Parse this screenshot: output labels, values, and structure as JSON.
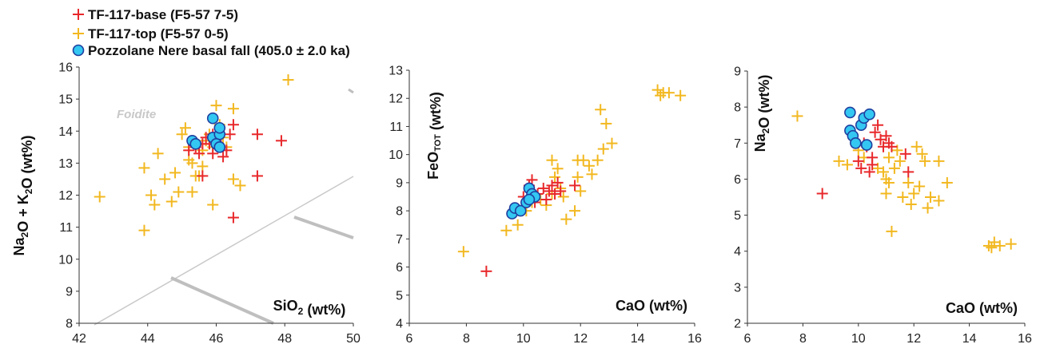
{
  "legend": {
    "base": "TF-117-base (F5-57 7-5)",
    "top": "TF-117-top (F5-57 0-5)",
    "pozz": "Pozzolane Nere basal fall (405.0 ± 2.0 ka)"
  },
  "colors": {
    "base": "#e8282b",
    "top": "#f2b820",
    "pozz_fill": "#33c7f2",
    "pozz_stroke": "#1f3f9f"
  },
  "chart_data": [
    {
      "type": "scatter",
      "xlabel": "SiO2 (wt%)",
      "ylabel": "Na2O + K2O (wt%)",
      "xlim": [
        42,
        50
      ],
      "ylim": [
        8,
        16
      ],
      "xticks": [
        "42",
        "44",
        "46",
        "48",
        "50"
      ],
      "yticks": [
        "8",
        "9",
        "10",
        "11",
        "12",
        "13",
        "14",
        "15",
        "16"
      ],
      "annotations": [
        "Foidite"
      ],
      "series": [
        {
          "name": "TF-117-base (F5-57 7-5)",
          "marker": "plus",
          "color": "#e8282b",
          "points": [
            [
              45.2,
              13.4
            ],
            [
              45.4,
              13.5
            ],
            [
              45.6,
              13.6
            ],
            [
              45.7,
              13.8
            ],
            [
              45.8,
              13.6
            ],
            [
              45.9,
              13.3
            ],
            [
              46.0,
              13.7
            ],
            [
              46.1,
              13.5
            ],
            [
              46.2,
              13.2
            ],
            [
              45.5,
              13.3
            ],
            [
              45.9,
              13.9
            ],
            [
              46.5,
              14.2
            ],
            [
              46.4,
              13.9
            ],
            [
              45.6,
              12.6
            ],
            [
              47.2,
              13.9
            ],
            [
              47.9,
              13.7
            ],
            [
              47.2,
              12.6
            ],
            [
              46.5,
              11.3
            ],
            [
              46.3,
              13.4
            ],
            [
              45.3,
              13.7
            ]
          ]
        },
        {
          "name": "TF-117-top (F5-57 0-5)",
          "marker": "plus",
          "color": "#f2b820",
          "points": [
            [
              42.6,
              11.95
            ],
            [
              43.9,
              10.9
            ],
            [
              43.9,
              12.85
            ],
            [
              44.1,
              12.0
            ],
            [
              44.3,
              13.3
            ],
            [
              44.2,
              11.7
            ],
            [
              44.5,
              12.5
            ],
            [
              44.7,
              11.8
            ],
            [
              44.8,
              12.7
            ],
            [
              44.9,
              12.1
            ],
            [
              45.0,
              13.9
            ],
            [
              45.1,
              14.1
            ],
            [
              45.2,
              13.5
            ],
            [
              45.3,
              12.1
            ],
            [
              45.3,
              13.0
            ],
            [
              45.4,
              12.6
            ],
            [
              45.5,
              12.6
            ],
            [
              45.6,
              13.4
            ],
            [
              45.7,
              13.7
            ],
            [
              45.8,
              13.9
            ],
            [
              45.9,
              11.7
            ],
            [
              46.0,
              14.8
            ],
            [
              46.1,
              14.2
            ],
            [
              46.2,
              13.8
            ],
            [
              46.3,
              13.5
            ],
            [
              46.5,
              14.7
            ],
            [
              46.5,
              12.5
            ],
            [
              46.7,
              12.3
            ],
            [
              48.1,
              15.6
            ],
            [
              45.2,
              13.1
            ],
            [
              45.6,
              12.9
            ],
            [
              45.9,
              13.5
            ]
          ]
        },
        {
          "name": "Pozzolane Nere basal fall (405.0 ± 2.0 ka)",
          "marker": "circle",
          "color": "#33c7f2",
          "points": [
            [
              45.3,
              13.7
            ],
            [
              45.9,
              14.4
            ],
            [
              45.9,
              13.8
            ],
            [
              46.1,
              13.9
            ],
            [
              46.1,
              14.1
            ],
            [
              46.0,
              13.6
            ],
            [
              46.1,
              13.5
            ],
            [
              45.4,
              13.6
            ]
          ]
        }
      ]
    },
    {
      "type": "scatter",
      "xlabel": "CaO (wt%)",
      "ylabel": "FeOTOT (wt%)",
      "xlim": [
        6,
        16
      ],
      "ylim": [
        4,
        13
      ],
      "xticks": [
        "6",
        "8",
        "10",
        "12",
        "14",
        "16"
      ],
      "yticks": [
        "4",
        "5",
        "6",
        "7",
        "8",
        "9",
        "10",
        "11",
        "12",
        "13"
      ],
      "series": [
        {
          "name": "TF-117-base (F5-57 7-5)",
          "marker": "plus",
          "color": "#e8282b",
          "points": [
            [
              8.7,
              5.85
            ],
            [
              10.0,
              8.5
            ],
            [
              10.2,
              8.9
            ],
            [
              10.3,
              9.1
            ],
            [
              10.5,
              8.6
            ],
            [
              10.7,
              8.8
            ],
            [
              10.8,
              8.4
            ],
            [
              11.0,
              8.9
            ],
            [
              11.1,
              8.6
            ],
            [
              11.2,
              9.0
            ],
            [
              11.3,
              8.7
            ],
            [
              11.8,
              8.9
            ],
            [
              10.4,
              8.3
            ],
            [
              10.9,
              8.7
            ]
          ]
        },
        {
          "name": "TF-117-top (F5-57 0-5)",
          "marker": "plus",
          "color": "#f2b820",
          "points": [
            [
              7.9,
              6.55
            ],
            [
              9.4,
              7.3
            ],
            [
              9.8,
              7.5
            ],
            [
              10.1,
              8.0
            ],
            [
              10.3,
              8.3
            ],
            [
              10.6,
              8.4
            ],
            [
              10.8,
              8.2
            ],
            [
              11.0,
              9.8
            ],
            [
              11.1,
              9.2
            ],
            [
              11.2,
              9.5
            ],
            [
              11.4,
              8.5
            ],
            [
              11.5,
              7.7
            ],
            [
              11.8,
              8.0
            ],
            [
              11.9,
              9.2
            ],
            [
              12.0,
              8.7
            ],
            [
              12.1,
              9.8
            ],
            [
              12.3,
              9.6
            ],
            [
              12.4,
              9.3
            ],
            [
              12.6,
              9.8
            ],
            [
              12.7,
              11.6
            ],
            [
              12.8,
              10.2
            ],
            [
              12.9,
              11.1
            ],
            [
              13.1,
              10.4
            ],
            [
              14.7,
              12.3
            ],
            [
              14.8,
              12.1
            ],
            [
              14.9,
              12.2
            ],
            [
              15.1,
              12.2
            ],
            [
              15.5,
              12.1
            ],
            [
              11.9,
              9.8
            ],
            [
              11.3,
              8.8
            ],
            [
              11.0,
              8.6
            ]
          ]
        },
        {
          "name": "Pozzolane Nere basal fall (405.0 ± 2.0 ka)",
          "marker": "circle",
          "color": "#33c7f2",
          "points": [
            [
              9.6,
              7.9
            ],
            [
              9.7,
              8.1
            ],
            [
              9.9,
              8.0
            ],
            [
              10.1,
              8.3
            ],
            [
              10.2,
              8.8
            ],
            [
              10.3,
              8.6
            ],
            [
              10.4,
              8.5
            ],
            [
              10.2,
              8.4
            ]
          ]
        }
      ]
    },
    {
      "type": "scatter",
      "xlabel": "CaO (wt%)",
      "ylabel": "Na2O (wt%)",
      "xlim": [
        6,
        16
      ],
      "ylim": [
        2,
        9
      ],
      "xticks": [
        "6",
        "8",
        "10",
        "12",
        "14",
        "16"
      ],
      "yticks": [
        "2",
        "3",
        "4",
        "5",
        "6",
        "7",
        "8",
        "9"
      ],
      "series": [
        {
          "name": "TF-117-base (F5-57 7-5)",
          "marker": "plus",
          "color": "#e8282b",
          "points": [
            [
              8.7,
              5.6
            ],
            [
              10.0,
              6.5
            ],
            [
              10.1,
              6.3
            ],
            [
              10.2,
              7.0
            ],
            [
              10.3,
              6.9
            ],
            [
              10.5,
              6.6
            ],
            [
              10.6,
              7.3
            ],
            [
              10.7,
              7.5
            ],
            [
              10.8,
              7.1
            ],
            [
              10.9,
              6.9
            ],
            [
              11.0,
              7.2
            ],
            [
              11.1,
              7.0
            ],
            [
              11.2,
              6.9
            ],
            [
              11.7,
              6.7
            ],
            [
              11.8,
              6.2
            ],
            [
              10.4,
              6.2
            ],
            [
              10.5,
              6.4
            ]
          ]
        },
        {
          "name": "TF-117-top (F5-57 0-5)",
          "marker": "plus",
          "color": "#f2b820",
          "points": [
            [
              7.8,
              7.75
            ],
            [
              9.3,
              6.5
            ],
            [
              9.6,
              6.4
            ],
            [
              10.0,
              6.8
            ],
            [
              10.2,
              6.6
            ],
            [
              10.7,
              6.3
            ],
            [
              10.9,
              6.2
            ],
            [
              11.0,
              5.6
            ],
            [
              11.0,
              6.0
            ],
            [
              11.1,
              5.9
            ],
            [
              11.1,
              6.6
            ],
            [
              11.2,
              4.55
            ],
            [
              11.3,
              6.3
            ],
            [
              11.4,
              6.8
            ],
            [
              11.6,
              5.5
            ],
            [
              11.8,
              5.9
            ],
            [
              11.9,
              5.3
            ],
            [
              12.0,
              5.6
            ],
            [
              12.1,
              6.9
            ],
            [
              12.3,
              6.7
            ],
            [
              12.4,
              6.5
            ],
            [
              12.5,
              5.2
            ],
            [
              12.6,
              5.5
            ],
            [
              12.9,
              5.4
            ],
            [
              12.9,
              6.5
            ],
            [
              13.2,
              5.9
            ],
            [
              14.7,
              4.15
            ],
            [
              14.8,
              4.1
            ],
            [
              14.9,
              4.25
            ],
            [
              15.1,
              4.15
            ],
            [
              15.5,
              4.2
            ],
            [
              12.2,
              5.8
            ],
            [
              11.5,
              6.5
            ]
          ]
        },
        {
          "name": "Pozzolane Nere basal fall (405.0 ± 2.0 ka)",
          "marker": "circle",
          "color": "#33c7f2",
          "points": [
            [
              9.7,
              7.85
            ],
            [
              9.7,
              7.35
            ],
            [
              9.8,
              7.2
            ],
            [
              9.9,
              7.0
            ],
            [
              10.1,
              7.5
            ],
            [
              10.2,
              7.7
            ],
            [
              10.3,
              6.95
            ],
            [
              10.4,
              7.8
            ]
          ]
        }
      ]
    }
  ]
}
